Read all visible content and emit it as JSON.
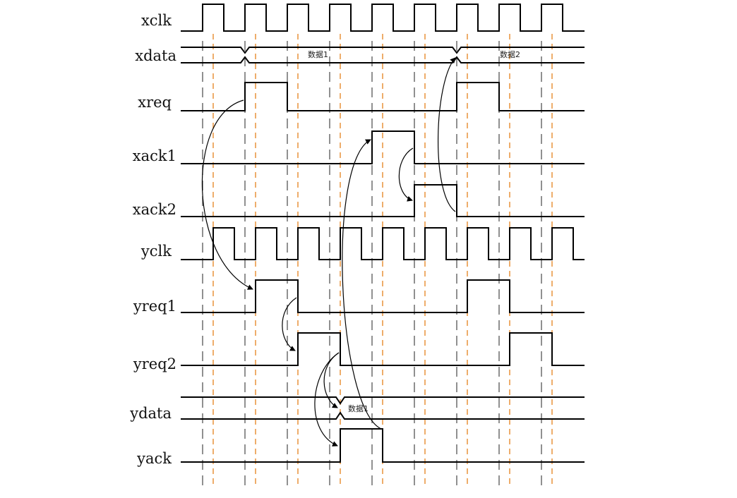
{
  "signals": [
    {
      "name": "xclk"
    },
    {
      "name": "xdata",
      "bus_labels": [
        "数据1",
        "数据2"
      ]
    },
    {
      "name": "xreq"
    },
    {
      "name": "xack1"
    },
    {
      "name": "xack2"
    },
    {
      "name": "yclk"
    },
    {
      "name": "yreq1"
    },
    {
      "name": "yreq2"
    },
    {
      "name": "ydata",
      "bus_labels": [
        "数据1"
      ]
    },
    {
      "name": "yack"
    }
  ],
  "colors": {
    "trace": "#000000",
    "xclk_marker": "#555555",
    "yclk_marker": "#e8923a"
  }
}
